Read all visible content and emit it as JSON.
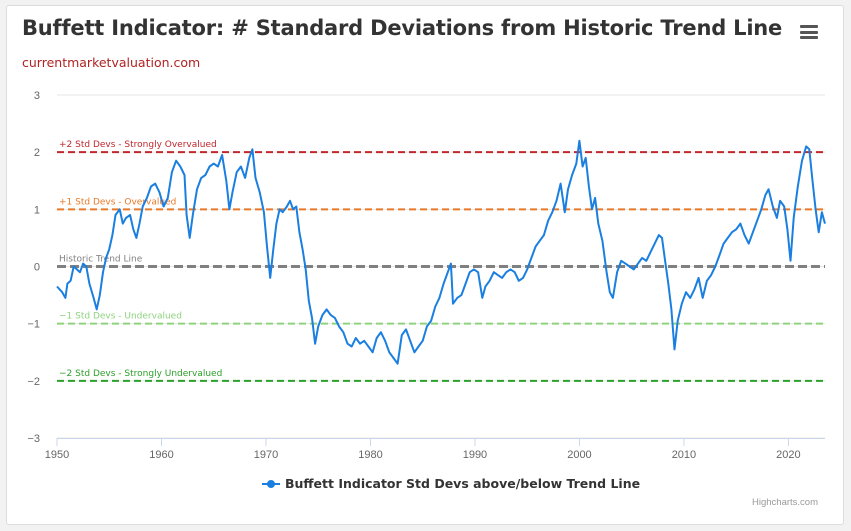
{
  "chart_title": "Buffett Indicator: # Standard Deviations from Historic Trend Line",
  "chart_subtitle": "currentmarketvaluation.com",
  "menu_icon": "hamburger-menu-icon",
  "credits": "Highcharts.com",
  "chart_data": {
    "type": "line",
    "title": "Buffett Indicator: # Standard Deviations from Historic Trend Line",
    "subtitle": "currentmarketvaluation.com",
    "xlim": [
      1950,
      2023.5
    ],
    "ylim": [
      -3,
      3
    ],
    "x_ticks": [
      "1950",
      "1960",
      "1970",
      "1980",
      "1990",
      "2000",
      "2010",
      "2020"
    ],
    "y_ticks": [
      "-3",
      "-2",
      "-1",
      "0",
      "1",
      "2",
      "3"
    ],
    "grid": "horizontal",
    "legend_position": "bottom-center",
    "plot_lines": [
      {
        "label": "+2 Std Devs - Strongly Overvalued",
        "value": 2,
        "color": "#c0272d"
      },
      {
        "label": "+1 Std Devs - Overvalued",
        "value": 1,
        "color": "#e8792a"
      },
      {
        "label": "Historic Trend Line",
        "value": 0,
        "color": "#808080"
      },
      {
        "label": "-1 Std Devs - Undervalued",
        "value": -1,
        "color": "#8fd37e"
      },
      {
        "label": "-2 Std Devs - Strongly Undervalued",
        "value": -2,
        "color": "#2ca02c"
      }
    ],
    "series": [
      {
        "name": "Buffett Indicator Std Devs above/below Trend Line",
        "color": "#1a7fe0",
        "points": [
          [
            1950.0,
            -0.35
          ],
          [
            1950.5,
            -0.45
          ],
          [
            1950.8,
            -0.55
          ],
          [
            1951.0,
            -0.3
          ],
          [
            1951.3,
            -0.25
          ],
          [
            1951.6,
            0.0
          ],
          [
            1951.9,
            -0.05
          ],
          [
            1952.2,
            -0.1
          ],
          [
            1952.5,
            0.05
          ],
          [
            1952.8,
            0.0
          ],
          [
            1953.1,
            -0.3
          ],
          [
            1953.5,
            -0.55
          ],
          [
            1953.8,
            -0.75
          ],
          [
            1954.1,
            -0.5
          ],
          [
            1954.4,
            -0.1
          ],
          [
            1954.7,
            0.15
          ],
          [
            1955.0,
            0.3
          ],
          [
            1955.3,
            0.55
          ],
          [
            1955.6,
            0.9
          ],
          [
            1956.0,
            1.0
          ],
          [
            1956.3,
            0.75
          ],
          [
            1956.6,
            0.85
          ],
          [
            1957.0,
            0.9
          ],
          [
            1957.3,
            0.65
          ],
          [
            1957.6,
            0.5
          ],
          [
            1957.9,
            0.75
          ],
          [
            1958.2,
            1.05
          ],
          [
            1958.6,
            1.2
          ],
          [
            1959.0,
            1.4
          ],
          [
            1959.4,
            1.45
          ],
          [
            1959.8,
            1.3
          ],
          [
            1960.2,
            1.05
          ],
          [
            1960.6,
            1.2
          ],
          [
            1961.0,
            1.65
          ],
          [
            1961.4,
            1.85
          ],
          [
            1961.8,
            1.75
          ],
          [
            1962.2,
            1.6
          ],
          [
            1962.4,
            0.9
          ],
          [
            1962.7,
            0.5
          ],
          [
            1963.0,
            0.9
          ],
          [
            1963.4,
            1.35
          ],
          [
            1963.8,
            1.55
          ],
          [
            1964.2,
            1.6
          ],
          [
            1964.6,
            1.75
          ],
          [
            1965.0,
            1.8
          ],
          [
            1965.4,
            1.75
          ],
          [
            1965.8,
            1.95
          ],
          [
            1966.2,
            1.5
          ],
          [
            1966.5,
            1.0
          ],
          [
            1966.8,
            1.3
          ],
          [
            1967.2,
            1.65
          ],
          [
            1967.6,
            1.75
          ],
          [
            1968.0,
            1.55
          ],
          [
            1968.4,
            1.9
          ],
          [
            1968.7,
            2.05
          ],
          [
            1969.0,
            1.55
          ],
          [
            1969.4,
            1.3
          ],
          [
            1969.8,
            0.95
          ],
          [
            1970.1,
            0.35
          ],
          [
            1970.4,
            -0.2
          ],
          [
            1970.7,
            0.3
          ],
          [
            1971.0,
            0.75
          ],
          [
            1971.3,
            1.0
          ],
          [
            1971.6,
            0.95
          ],
          [
            1972.0,
            1.05
          ],
          [
            1972.3,
            1.15
          ],
          [
            1972.6,
            1.0
          ],
          [
            1972.9,
            1.05
          ],
          [
            1973.2,
            0.6
          ],
          [
            1973.5,
            0.3
          ],
          [
            1973.8,
            -0.05
          ],
          [
            1974.1,
            -0.6
          ],
          [
            1974.4,
            -0.9
          ],
          [
            1974.7,
            -1.35
          ],
          [
            1975.0,
            -1.05
          ],
          [
            1975.4,
            -0.85
          ],
          [
            1975.8,
            -0.75
          ],
          [
            1976.2,
            -0.85
          ],
          [
            1976.6,
            -0.9
          ],
          [
            1977.0,
            -1.05
          ],
          [
            1977.4,
            -1.15
          ],
          [
            1977.8,
            -1.35
          ],
          [
            1978.2,
            -1.4
          ],
          [
            1978.6,
            -1.25
          ],
          [
            1979.0,
            -1.35
          ],
          [
            1979.4,
            -1.3
          ],
          [
            1979.8,
            -1.4
          ],
          [
            1980.2,
            -1.5
          ],
          [
            1980.6,
            -1.25
          ],
          [
            1981.0,
            -1.15
          ],
          [
            1981.4,
            -1.3
          ],
          [
            1981.8,
            -1.5
          ],
          [
            1982.2,
            -1.6
          ],
          [
            1982.6,
            -1.7
          ],
          [
            1983.0,
            -1.2
          ],
          [
            1983.4,
            -1.1
          ],
          [
            1983.8,
            -1.3
          ],
          [
            1984.2,
            -1.5
          ],
          [
            1984.6,
            -1.4
          ],
          [
            1985.0,
            -1.3
          ],
          [
            1985.4,
            -1.05
          ],
          [
            1985.8,
            -0.95
          ],
          [
            1986.2,
            -0.7
          ],
          [
            1986.6,
            -0.55
          ],
          [
            1987.0,
            -0.3
          ],
          [
            1987.4,
            -0.1
          ],
          [
            1987.7,
            0.05
          ],
          [
            1987.9,
            -0.65
          ],
          [
            1988.3,
            -0.55
          ],
          [
            1988.7,
            -0.5
          ],
          [
            1989.1,
            -0.3
          ],
          [
            1989.5,
            -0.1
          ],
          [
            1989.9,
            -0.05
          ],
          [
            1990.3,
            -0.1
          ],
          [
            1990.7,
            -0.55
          ],
          [
            1991.0,
            -0.35
          ],
          [
            1991.4,
            -0.25
          ],
          [
            1991.8,
            -0.1
          ],
          [
            1992.2,
            -0.15
          ],
          [
            1992.6,
            -0.2
          ],
          [
            1993.0,
            -0.1
          ],
          [
            1993.4,
            -0.05
          ],
          [
            1993.8,
            -0.1
          ],
          [
            1994.2,
            -0.25
          ],
          [
            1994.6,
            -0.2
          ],
          [
            1995.0,
            -0.05
          ],
          [
            1995.4,
            0.15
          ],
          [
            1995.8,
            0.35
          ],
          [
            1996.2,
            0.45
          ],
          [
            1996.6,
            0.55
          ],
          [
            1997.0,
            0.8
          ],
          [
            1997.4,
            0.95
          ],
          [
            1997.8,
            1.15
          ],
          [
            1998.2,
            1.45
          ],
          [
            1998.6,
            0.95
          ],
          [
            1998.9,
            1.35
          ],
          [
            1999.3,
            1.6
          ],
          [
            1999.7,
            1.8
          ],
          [
            2000.0,
            2.2
          ],
          [
            2000.3,
            1.75
          ],
          [
            2000.6,
            1.9
          ],
          [
            2000.9,
            1.4
          ],
          [
            2001.2,
            1.0
          ],
          [
            2001.5,
            1.2
          ],
          [
            2001.8,
            0.75
          ],
          [
            2002.2,
            0.45
          ],
          [
            2002.6,
            -0.1
          ],
          [
            2002.9,
            -0.45
          ],
          [
            2003.2,
            -0.55
          ],
          [
            2003.6,
            -0.1
          ],
          [
            2004.0,
            0.1
          ],
          [
            2004.4,
            0.05
          ],
          [
            2004.8,
            0.0
          ],
          [
            2005.2,
            -0.05
          ],
          [
            2005.6,
            0.05
          ],
          [
            2006.0,
            0.15
          ],
          [
            2006.4,
            0.1
          ],
          [
            2006.8,
            0.25
          ],
          [
            2007.2,
            0.4
          ],
          [
            2007.6,
            0.55
          ],
          [
            2007.9,
            0.5
          ],
          [
            2008.2,
            0.1
          ],
          [
            2008.5,
            -0.3
          ],
          [
            2008.8,
            -0.75
          ],
          [
            2009.1,
            -1.45
          ],
          [
            2009.4,
            -0.95
          ],
          [
            2009.8,
            -0.65
          ],
          [
            2010.2,
            -0.45
          ],
          [
            2010.6,
            -0.55
          ],
          [
            2011.0,
            -0.4
          ],
          [
            2011.4,
            -0.2
          ],
          [
            2011.8,
            -0.55
          ],
          [
            2012.2,
            -0.25
          ],
          [
            2012.6,
            -0.15
          ],
          [
            2013.0,
            0.0
          ],
          [
            2013.4,
            0.2
          ],
          [
            2013.8,
            0.4
          ],
          [
            2014.2,
            0.5
          ],
          [
            2014.6,
            0.6
          ],
          [
            2015.0,
            0.65
          ],
          [
            2015.4,
            0.75
          ],
          [
            2015.8,
            0.55
          ],
          [
            2016.2,
            0.4
          ],
          [
            2016.6,
            0.6
          ],
          [
            2017.0,
            0.8
          ],
          [
            2017.4,
            1.0
          ],
          [
            2017.8,
            1.25
          ],
          [
            2018.1,
            1.35
          ],
          [
            2018.5,
            1.05
          ],
          [
            2018.9,
            0.85
          ],
          [
            2019.2,
            1.15
          ],
          [
            2019.6,
            1.05
          ],
          [
            2019.9,
            0.65
          ],
          [
            2020.2,
            0.1
          ],
          [
            2020.5,
            0.85
          ],
          [
            2020.9,
            1.4
          ],
          [
            2021.3,
            1.85
          ],
          [
            2021.7,
            2.1
          ],
          [
            2022.0,
            2.05
          ],
          [
            2022.3,
            1.5
          ],
          [
            2022.6,
            1.0
          ],
          [
            2022.9,
            0.6
          ],
          [
            2023.2,
            0.95
          ],
          [
            2023.5,
            0.75
          ]
        ]
      }
    ]
  }
}
